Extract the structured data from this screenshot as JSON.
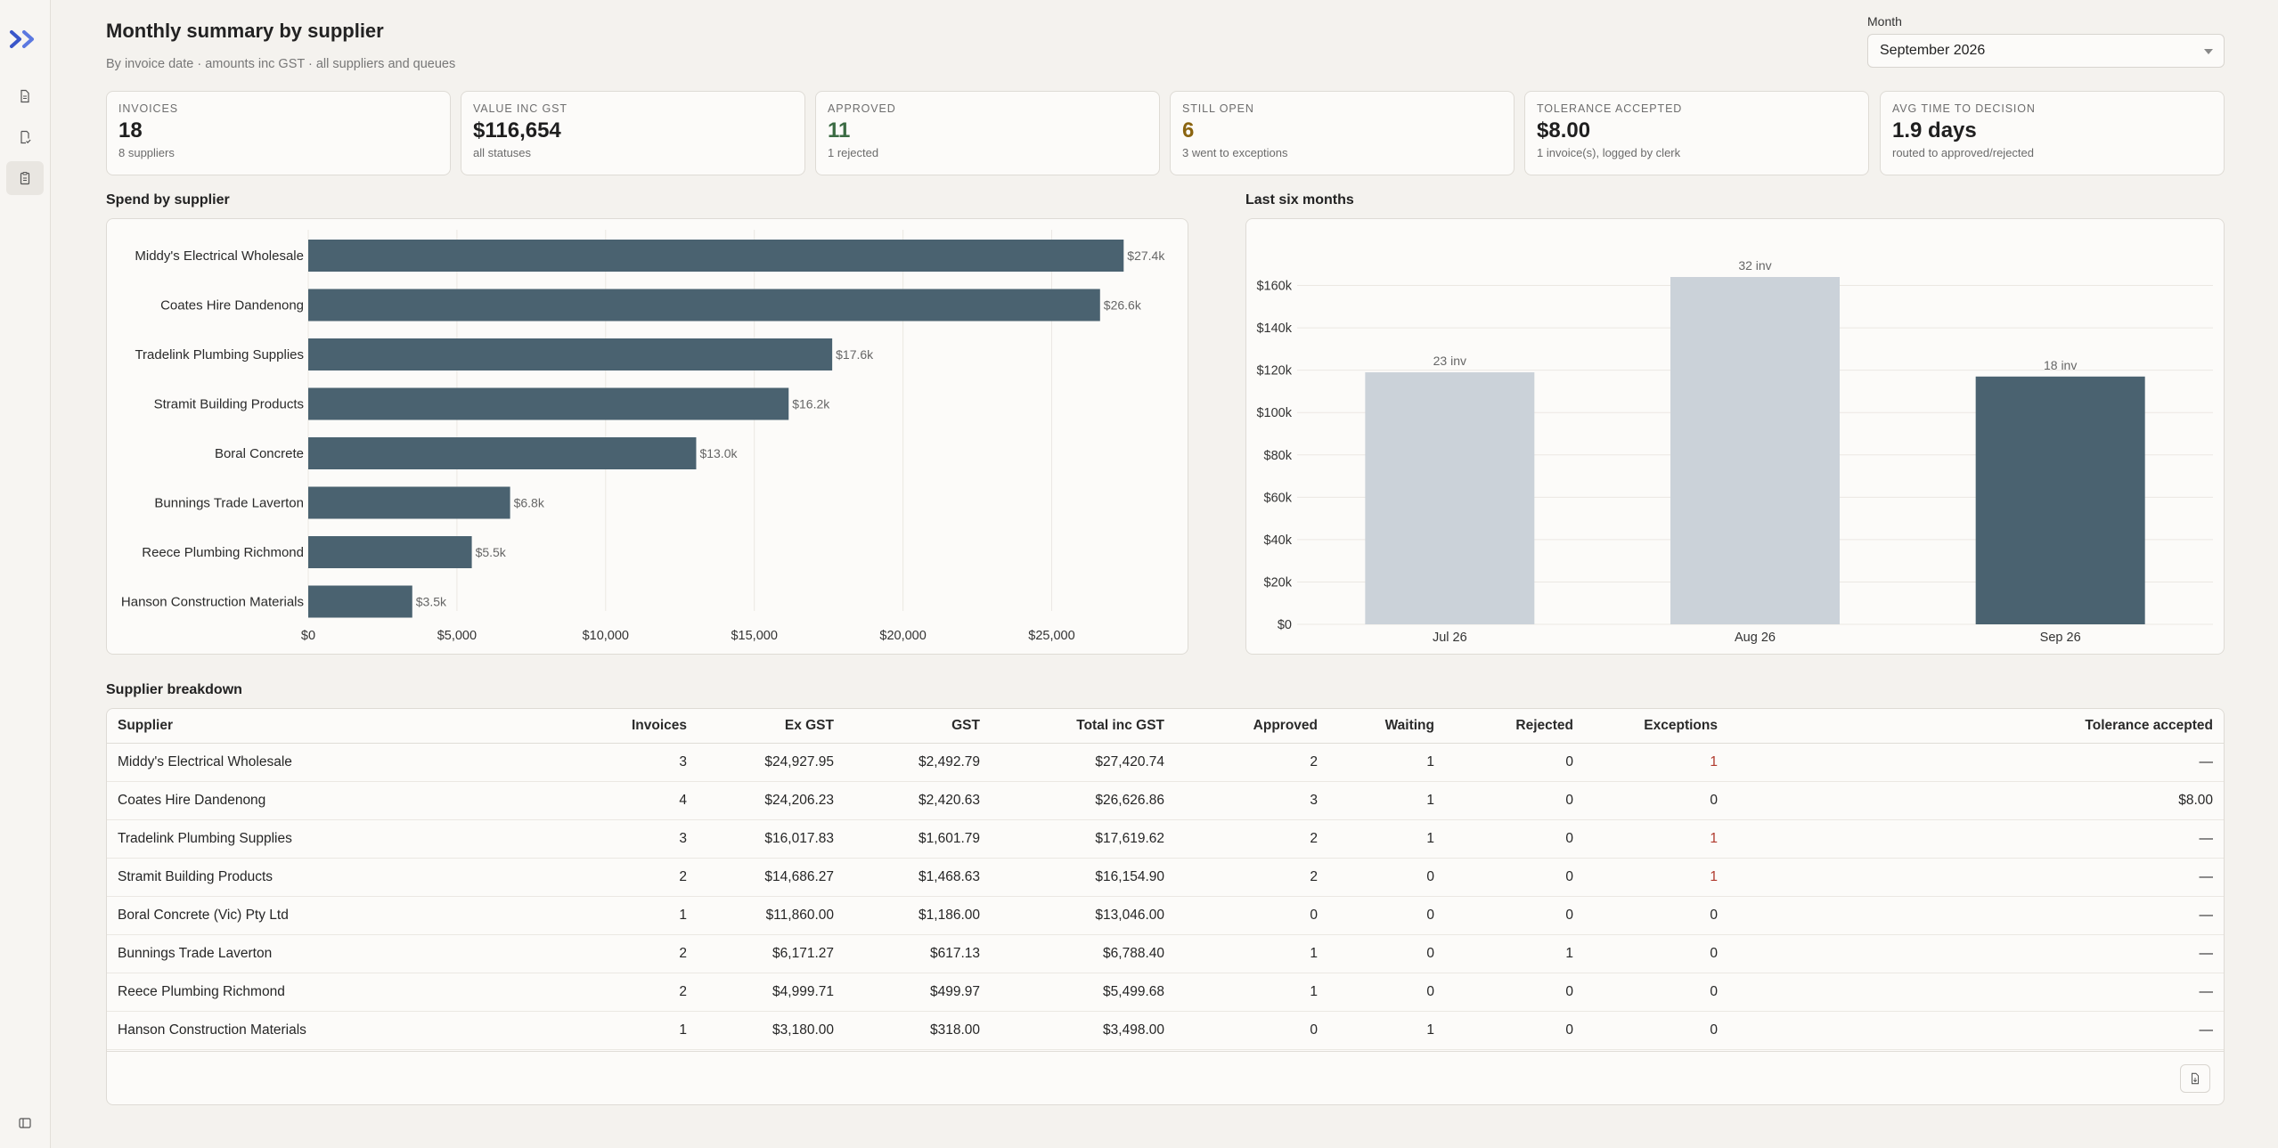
{
  "header": {
    "title": "Monthly summary by supplier",
    "subtitle": "By invoice date · amounts inc GST · all suppliers and queues"
  },
  "month": {
    "label": "Month",
    "selected": "September 2026"
  },
  "kpis": [
    {
      "label": "Invoices",
      "value": "18",
      "sub": "8 suppliers",
      "color": "#1f1f1f"
    },
    {
      "label": "Value inc GST",
      "value": "$116,654",
      "sub": "all statuses",
      "color": "#1f1f1f"
    },
    {
      "label": "Approved",
      "value": "11",
      "sub": "1 rejected",
      "color": "#3b6b43"
    },
    {
      "label": "Still open",
      "value": "6",
      "sub": "3 went to exceptions",
      "color": "#8a6410"
    },
    {
      "label": "Tolerance accepted",
      "value": "$8.00",
      "sub": "1 invoice(s), logged by clerk",
      "color": "#1f1f1f"
    },
    {
      "label": "Avg time to decision",
      "value": "1.9 days",
      "sub": "routed to approved/rejected",
      "color": "#1f1f1f"
    }
  ],
  "sections": {
    "spend": "Spend by supplier",
    "six_months": "Last six months",
    "breakdown": "Supplier breakdown"
  },
  "chart_data": [
    {
      "type": "bar",
      "orientation": "horizontal",
      "categories": [
        "Middy's Electrical Wholesale",
        "Coates Hire Dandenong",
        "Tradelink Plumbing Supplies",
        "Stramit Building Products",
        "Boral Concrete",
        "Bunnings Trade Laverton",
        "Reece Plumbing Richmond",
        "Hanson Construction Materials"
      ],
      "values": [
        27420.74,
        26626.86,
        17619.62,
        16154.9,
        13046.0,
        6788.4,
        5499.68,
        3498.0
      ],
      "data_labels": [
        "$27.4k",
        "$26.6k",
        "$17.6k",
        "$16.2k",
        "$13.0k",
        "$6.8k",
        "$5.5k",
        "$3.5k"
      ],
      "xticks": [
        "$0",
        "$5,000",
        "$10,000",
        "$15,000",
        "$20,000",
        "$25,000"
      ],
      "xtick_values": [
        0,
        5000,
        10000,
        15000,
        20000,
        25000
      ],
      "xlim": [
        0,
        29000
      ],
      "bar_color": "#4a6270",
      "grid": true
    },
    {
      "type": "bar",
      "categories": [
        "Jul 26",
        "Aug 26",
        "Sep 26"
      ],
      "values": [
        119000,
        164000,
        117000
      ],
      "data_labels": [
        "23 inv",
        "32 inv",
        "18 inv"
      ],
      "yticks": [
        "$0",
        "$20k",
        "$40k",
        "$60k",
        "$80k",
        "$100k",
        "$120k",
        "$140k",
        "$160k"
      ],
      "ytick_values": [
        0,
        20000,
        40000,
        60000,
        80000,
        100000,
        120000,
        140000,
        160000
      ],
      "ylim": [
        0,
        172000
      ],
      "colors": [
        "#cbd2d9",
        "#cbd2d9",
        "#4a6270"
      ],
      "grid": true
    }
  ],
  "table": {
    "columns": [
      "Supplier",
      "Invoices",
      "Ex GST",
      "GST",
      "Total inc GST",
      "Approved",
      "Waiting",
      "Rejected",
      "Exceptions",
      "Tolerance accepted"
    ],
    "rows": [
      [
        "Middy's Electrical Wholesale",
        "3",
        "$24,927.95",
        "$2,492.79",
        "$27,420.74",
        "2",
        "1",
        "0",
        "1",
        "—"
      ],
      [
        "Coates Hire Dandenong",
        "4",
        "$24,206.23",
        "$2,420.63",
        "$26,626.86",
        "3",
        "1",
        "0",
        "0",
        "$8.00"
      ],
      [
        "Tradelink Plumbing Supplies",
        "3",
        "$16,017.83",
        "$1,601.79",
        "$17,619.62",
        "2",
        "1",
        "0",
        "1",
        "—"
      ],
      [
        "Stramit Building Products",
        "2",
        "$14,686.27",
        "$1,468.63",
        "$16,154.90",
        "2",
        "0",
        "0",
        "1",
        "—"
      ],
      [
        "Boral Concrete (Vic) Pty Ltd",
        "1",
        "$11,860.00",
        "$1,186.00",
        "$13,046.00",
        "0",
        "0",
        "0",
        "0",
        "—"
      ],
      [
        "Bunnings Trade Laverton",
        "2",
        "$6,171.27",
        "$617.13",
        "$6,788.40",
        "1",
        "0",
        "1",
        "0",
        "—"
      ],
      [
        "Reece Plumbing Richmond",
        "2",
        "$4,999.71",
        "$499.97",
        "$5,499.68",
        "1",
        "0",
        "0",
        "0",
        "—"
      ],
      [
        "Hanson Construction Materials",
        "1",
        "$3,180.00",
        "$318.00",
        "$3,498.00",
        "0",
        "1",
        "0",
        "0",
        "—"
      ]
    ],
    "exception_color": "#b03a2e"
  },
  "icons": {
    "logo": "chevrons-right-logo",
    "nav": [
      "document-icon",
      "receipt-check-icon",
      "clipboard-icon"
    ],
    "collapse": "sidebar-collapse-icon",
    "export": "file-export-icon"
  }
}
